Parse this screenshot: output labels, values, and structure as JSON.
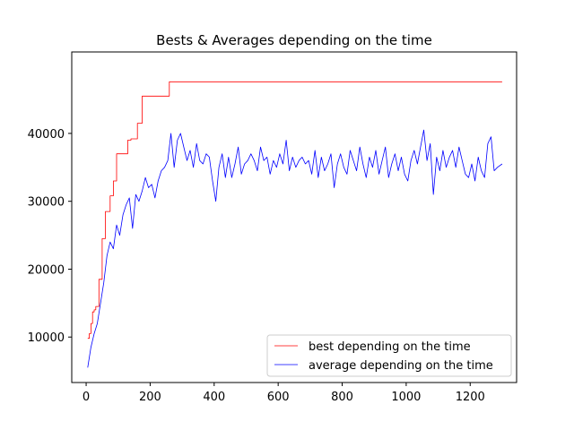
{
  "chart_data": {
    "type": "line",
    "title": "Bests & Averages depending on the time",
    "xlabel": "",
    "ylabel": "",
    "xlim": [
      -45,
      1345
    ],
    "ylim": [
      3300,
      52000
    ],
    "xticks": [
      0,
      200,
      400,
      600,
      800,
      1000,
      1200
    ],
    "yticks": [
      10000,
      20000,
      30000,
      40000
    ],
    "grid": false,
    "legend_position": "lower-right",
    "series": [
      {
        "name": "best depending on the time",
        "color": "#ff0000",
        "step": true,
        "x": [
          5,
          10,
          15,
          20,
          25,
          30,
          40,
          50,
          60,
          65,
          75,
          85,
          95,
          100,
          110,
          130,
          140,
          160,
          175,
          190,
          260,
          1300
        ],
        "y": [
          9800,
          10500,
          12000,
          13700,
          14000,
          14500,
          18500,
          24500,
          28500,
          28500,
          30800,
          33000,
          37000,
          37000,
          37000,
          39000,
          39200,
          41500,
          45500,
          45500,
          47600,
          47600
        ]
      },
      {
        "name": "average depending on the time",
        "color": "#0000ff",
        "step": false,
        "x": [
          5,
          15,
          25,
          35,
          45,
          55,
          65,
          75,
          85,
          95,
          105,
          115,
          125,
          135,
          145,
          155,
          165,
          175,
          185,
          195,
          205,
          215,
          225,
          235,
          245,
          255,
          265,
          275,
          285,
          295,
          305,
          315,
          325,
          335,
          345,
          355,
          365,
          375,
          385,
          395,
          405,
          415,
          425,
          435,
          445,
          455,
          465,
          475,
          485,
          495,
          505,
          515,
          525,
          535,
          545,
          555,
          565,
          575,
          585,
          595,
          605,
          615,
          625,
          635,
          645,
          655,
          665,
          675,
          685,
          695,
          705,
          715,
          725,
          735,
          745,
          755,
          765,
          775,
          785,
          795,
          805,
          815,
          825,
          835,
          845,
          855,
          865,
          875,
          885,
          895,
          905,
          915,
          925,
          935,
          945,
          955,
          965,
          975,
          985,
          995,
          1005,
          1015,
          1025,
          1035,
          1045,
          1055,
          1065,
          1075,
          1085,
          1095,
          1105,
          1115,
          1125,
          1135,
          1145,
          1155,
          1165,
          1175,
          1185,
          1195,
          1205,
          1215,
          1225,
          1235,
          1245,
          1255,
          1265,
          1275,
          1285,
          1300
        ],
        "y": [
          5500,
          8500,
          10500,
          12000,
          15000,
          18000,
          22000,
          24000,
          23000,
          26500,
          25000,
          28000,
          29500,
          30500,
          26000,
          31000,
          30000,
          31500,
          33500,
          32000,
          32500,
          30500,
          33000,
          34500,
          35000,
          36000,
          40000,
          35000,
          39000,
          40000,
          38000,
          36000,
          37500,
          35000,
          38500,
          36000,
          35500,
          37000,
          36500,
          33000,
          30000,
          35000,
          37000,
          33500,
          36500,
          33500,
          35500,
          38000,
          34000,
          35500,
          36000,
          37000,
          36000,
          34500,
          38000,
          36000,
          36500,
          34000,
          36000,
          35000,
          37000,
          35500,
          39000,
          34500,
          36500,
          35000,
          36000,
          36500,
          35500,
          36000,
          34000,
          37500,
          33500,
          36500,
          34500,
          35500,
          37000,
          32000,
          35500,
          37000,
          35000,
          34000,
          37500,
          36000,
          34500,
          38000,
          35500,
          33500,
          36500,
          35000,
          37500,
          34000,
          36000,
          38000,
          33500,
          35500,
          37000,
          34500,
          36500,
          34000,
          33000,
          36000,
          37500,
          35500,
          38000,
          40500,
          36000,
          38500,
          31000,
          36500,
          34500,
          37500,
          35000,
          36500,
          37500,
          35000,
          38000,
          36000,
          34000,
          33500,
          35500,
          33000,
          36500,
          34500,
          33500,
          38500,
          39500,
          34500,
          35000,
          35500
        ]
      }
    ]
  }
}
